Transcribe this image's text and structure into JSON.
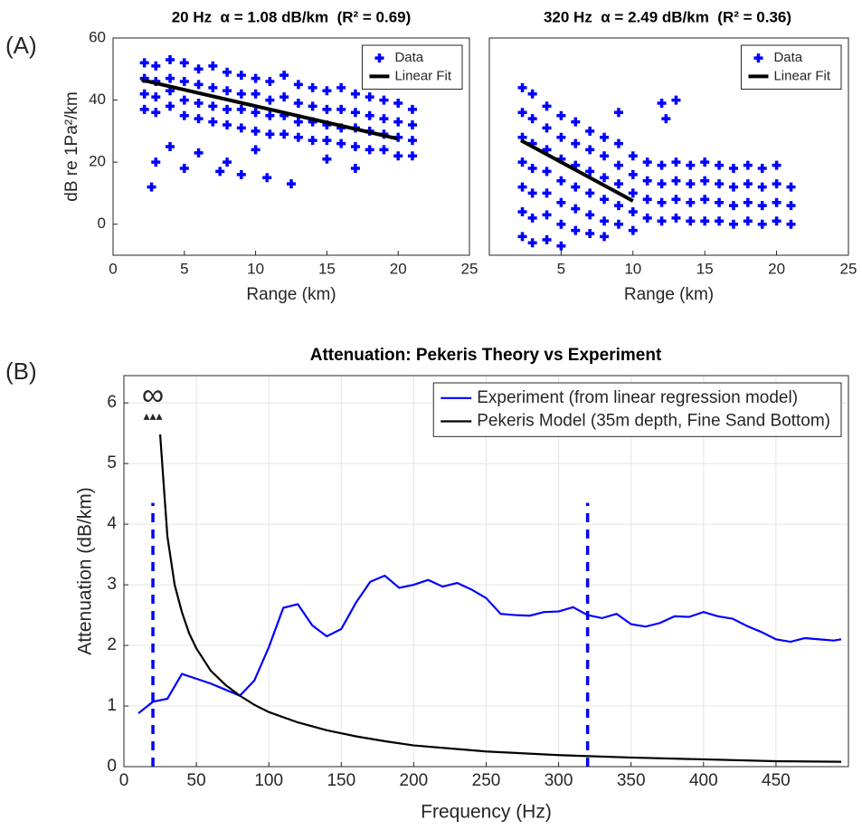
{
  "panel_labels": [
    "(A)",
    "(B)"
  ],
  "chart_data": [
    {
      "type": "scatter",
      "title": "20 Hz  α = 1.08 dB/km  (R² = 0.69)",
      "x_label": "Range (km)",
      "y_label": "dB re 1Pa²/km",
      "xlim": [
        0,
        25
      ],
      "ylim": [
        -10,
        60
      ],
      "xticks": [
        0,
        5,
        10,
        15,
        20,
        25
      ],
      "yticks": [
        0,
        20,
        40,
        60
      ],
      "grid": false,
      "legend": "upper right",
      "series": [
        {
          "name": "Data",
          "color": "#0000ff",
          "style": "marker",
          "x": [
            2.2,
            2.2,
            2.2,
            2.2,
            3,
            3,
            3,
            3,
            4,
            4,
            4,
            4,
            5,
            5,
            5,
            5,
            6,
            6,
            6,
            6,
            7,
            7,
            7,
            7,
            8,
            8,
            8,
            8,
            9,
            9,
            9,
            9,
            10,
            10,
            10,
            10,
            11,
            11,
            11,
            11,
            12,
            12,
            12,
            12,
            13,
            13,
            13,
            13,
            14,
            14,
            14,
            14,
            15,
            15,
            15,
            15,
            16,
            16,
            16,
            16,
            17,
            17,
            17,
            17,
            18,
            18,
            18,
            18,
            19,
            19,
            19,
            19,
            20,
            20,
            20,
            20,
            21,
            21,
            21,
            21,
            2.7,
            3,
            4,
            5,
            6,
            7.5,
            8,
            9,
            10,
            12.5,
            15,
            17,
            10.8
          ],
          "values": [
            52,
            47,
            42,
            37,
            51,
            46,
            41,
            36,
            53,
            47,
            43,
            38,
            52,
            46,
            40,
            35,
            50,
            45,
            39,
            34,
            51,
            44,
            38,
            33,
            49,
            43,
            37,
            32,
            48,
            42,
            37,
            31,
            47,
            42,
            36,
            30,
            46,
            40,
            35,
            29,
            48,
            41,
            35,
            29,
            45,
            39,
            33,
            28,
            44,
            38,
            33,
            27,
            43,
            37,
            32,
            27,
            44,
            37,
            31,
            26,
            42,
            36,
            31,
            25,
            41,
            35,
            30,
            24,
            40,
            34,
            29,
            24,
            39,
            33,
            28,
            22,
            37,
            32,
            27,
            22,
            12,
            20,
            25,
            18,
            23,
            17,
            20,
            16,
            24,
            13,
            21,
            18,
            15
          ]
        },
        {
          "name": "Linear Fit",
          "color": "#000000",
          "style": "line",
          "x": [
            2,
            20
          ],
          "values": [
            46.5,
            27.5
          ]
        }
      ]
    },
    {
      "type": "scatter",
      "title": "320 Hz  α = 2.49 dB/km  (R² = 0.36)",
      "x_label": "Range (km)",
      "xlim": [
        0,
        25
      ],
      "ylim": [
        -10,
        60
      ],
      "xticks": [
        5,
        10,
        15,
        20,
        25
      ],
      "grid": false,
      "legend": "upper right",
      "series": [
        {
          "name": "Data",
          "color": "#0000ff",
          "style": "marker",
          "x": [
            2.3,
            2.3,
            2.3,
            2.3,
            2.3,
            2.3,
            2.3,
            3,
            3,
            3,
            3,
            3,
            3,
            3,
            4,
            4,
            4,
            4,
            4,
            4,
            4,
            5,
            5,
            5,
            5,
            5,
            5,
            5,
            6,
            6,
            6,
            6,
            6,
            6,
            7,
            7,
            7,
            7,
            7,
            7,
            8,
            8,
            8,
            8,
            8,
            8,
            9,
            9,
            9,
            9,
            9,
            10,
            10,
            10,
            10,
            10,
            11,
            11,
            11,
            11,
            12,
            12,
            12,
            12,
            13,
            13,
            13,
            13,
            14,
            14,
            14,
            14,
            15,
            15,
            15,
            15,
            16,
            16,
            16,
            16,
            17,
            17,
            17,
            17,
            18,
            18,
            18,
            18,
            19,
            19,
            19,
            19,
            20,
            20,
            20,
            20,
            21,
            21,
            21,
            12,
            12.3,
            9,
            13
          ],
          "values": [
            44,
            36,
            28,
            20,
            12,
            4,
            -4,
            42,
            34,
            26,
            18,
            10,
            2,
            -6,
            38,
            31,
            24,
            17,
            10,
            3,
            -5,
            35,
            28,
            21,
            14,
            7,
            0,
            -7,
            33,
            26,
            19,
            12,
            5,
            -2,
            30,
            24,
            17,
            10,
            3,
            -3,
            28,
            22,
            15,
            8,
            1,
            -4,
            26,
            19,
            13,
            6,
            0,
            22,
            16,
            10,
            4,
            -2,
            20,
            14,
            8,
            2,
            19,
            13,
            7,
            1,
            20,
            14,
            8,
            2,
            19,
            13,
            7,
            1,
            20,
            14,
            8,
            1,
            19,
            13,
            7,
            1,
            18,
            12,
            6,
            0,
            19,
            13,
            7,
            1,
            18,
            12,
            6,
            0,
            19,
            13,
            7,
            1,
            12,
            6,
            0,
            39,
            34,
            36,
            40
          ]
        },
        {
          "name": "Linear Fit",
          "color": "#000000",
          "style": "line",
          "x": [
            2.2,
            10
          ],
          "values": [
            27,
            7.5
          ]
        }
      ]
    },
    {
      "type": "line",
      "title": "Attenuation: Pekeris Theory vs Experiment",
      "x_label": "Frequency (Hz)",
      "y_label": "Attenuation (dB/km)",
      "xlim": [
        0,
        500
      ],
      "ylim": [
        0,
        6.45
      ],
      "xticks": [
        0,
        50,
        100,
        150,
        200,
        250,
        300,
        350,
        400,
        450
      ],
      "yticks": [
        0,
        1,
        2,
        3,
        4,
        5,
        6
      ],
      "grid": true,
      "legend": "upper right",
      "series": [
        {
          "name": "Experiment (from linear regression model)",
          "color": "#0000ff",
          "style": "line",
          "x": [
            10,
            20,
            30,
            40,
            50,
            60,
            70,
            80,
            90,
            100,
            110,
            120,
            130,
            140,
            150,
            160,
            170,
            180,
            190,
            200,
            210,
            220,
            230,
            240,
            250,
            260,
            270,
            280,
            290,
            300,
            310,
            320,
            330,
            340,
            350,
            360,
            370,
            380,
            390,
            400,
            410,
            420,
            430,
            440,
            450,
            460,
            470,
            480,
            490,
            495
          ],
          "values": [
            0.88,
            1.07,
            1.12,
            1.53,
            1.45,
            1.37,
            1.27,
            1.17,
            1.42,
            1.97,
            2.62,
            2.68,
            2.33,
            2.15,
            2.27,
            2.7,
            3.05,
            3.15,
            2.95,
            3.0,
            3.08,
            2.97,
            3.03,
            2.92,
            2.78,
            2.52,
            2.5,
            2.49,
            2.55,
            2.56,
            2.63,
            2.5,
            2.45,
            2.52,
            2.35,
            2.31,
            2.37,
            2.48,
            2.47,
            2.55,
            2.48,
            2.44,
            2.32,
            2.22,
            2.1,
            2.06,
            2.12,
            2.1,
            2.08,
            2.1
          ]
        },
        {
          "name": "Pekeris Model (35m depth, Fine Sand Bottom)",
          "color": "#000000",
          "style": "line",
          "x": [
            25,
            30,
            35,
            40,
            45,
            50,
            60,
            70,
            80,
            90,
            100,
            120,
            140,
            160,
            180,
            200,
            250,
            300,
            350,
            400,
            450,
            495
          ],
          "values": [
            5.48,
            3.8,
            3.0,
            2.55,
            2.2,
            1.95,
            1.58,
            1.35,
            1.17,
            1.02,
            0.9,
            0.73,
            0.6,
            0.5,
            0.42,
            0.35,
            0.25,
            0.19,
            0.15,
            0.12,
            0.09,
            0.08
          ]
        }
      ],
      "reference_color": "#0000ff",
      "reference_lines": [
        {
          "x": 20,
          "y": [
            0,
            4.35
          ]
        },
        {
          "x": 320,
          "y": [
            0,
            4.35
          ]
        }
      ],
      "annotations": [
        {
          "text": "∞",
          "x": 20,
          "y": 6.1
        },
        {
          "text": "▴▴▴",
          "x": 20,
          "y": 5.77
        }
      ]
    }
  ]
}
